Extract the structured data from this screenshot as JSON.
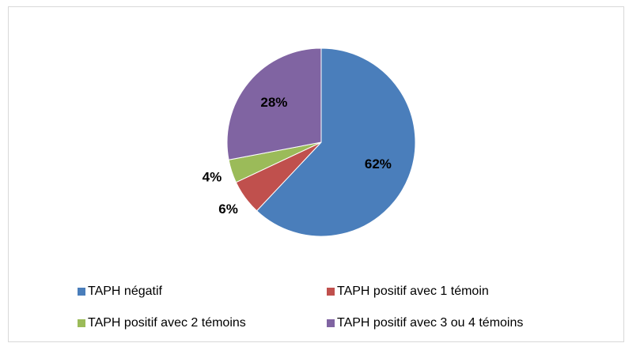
{
  "chart_data": {
    "type": "pie",
    "categories": [
      "TAPH négatif",
      "TAPH positif avec 1 témoin",
      "TAPH positif avec 2 témoins",
      "TAPH positif avec 3 ou 4 témoins"
    ],
    "values": [
      62,
      6,
      4,
      28
    ],
    "value_labels": [
      "62%",
      "6%",
      "4%",
      "28%"
    ],
    "colors": [
      "#4a7ebb",
      "#c0504d",
      "#9bbb59",
      "#8064a2"
    ],
    "legend": "bottom"
  }
}
